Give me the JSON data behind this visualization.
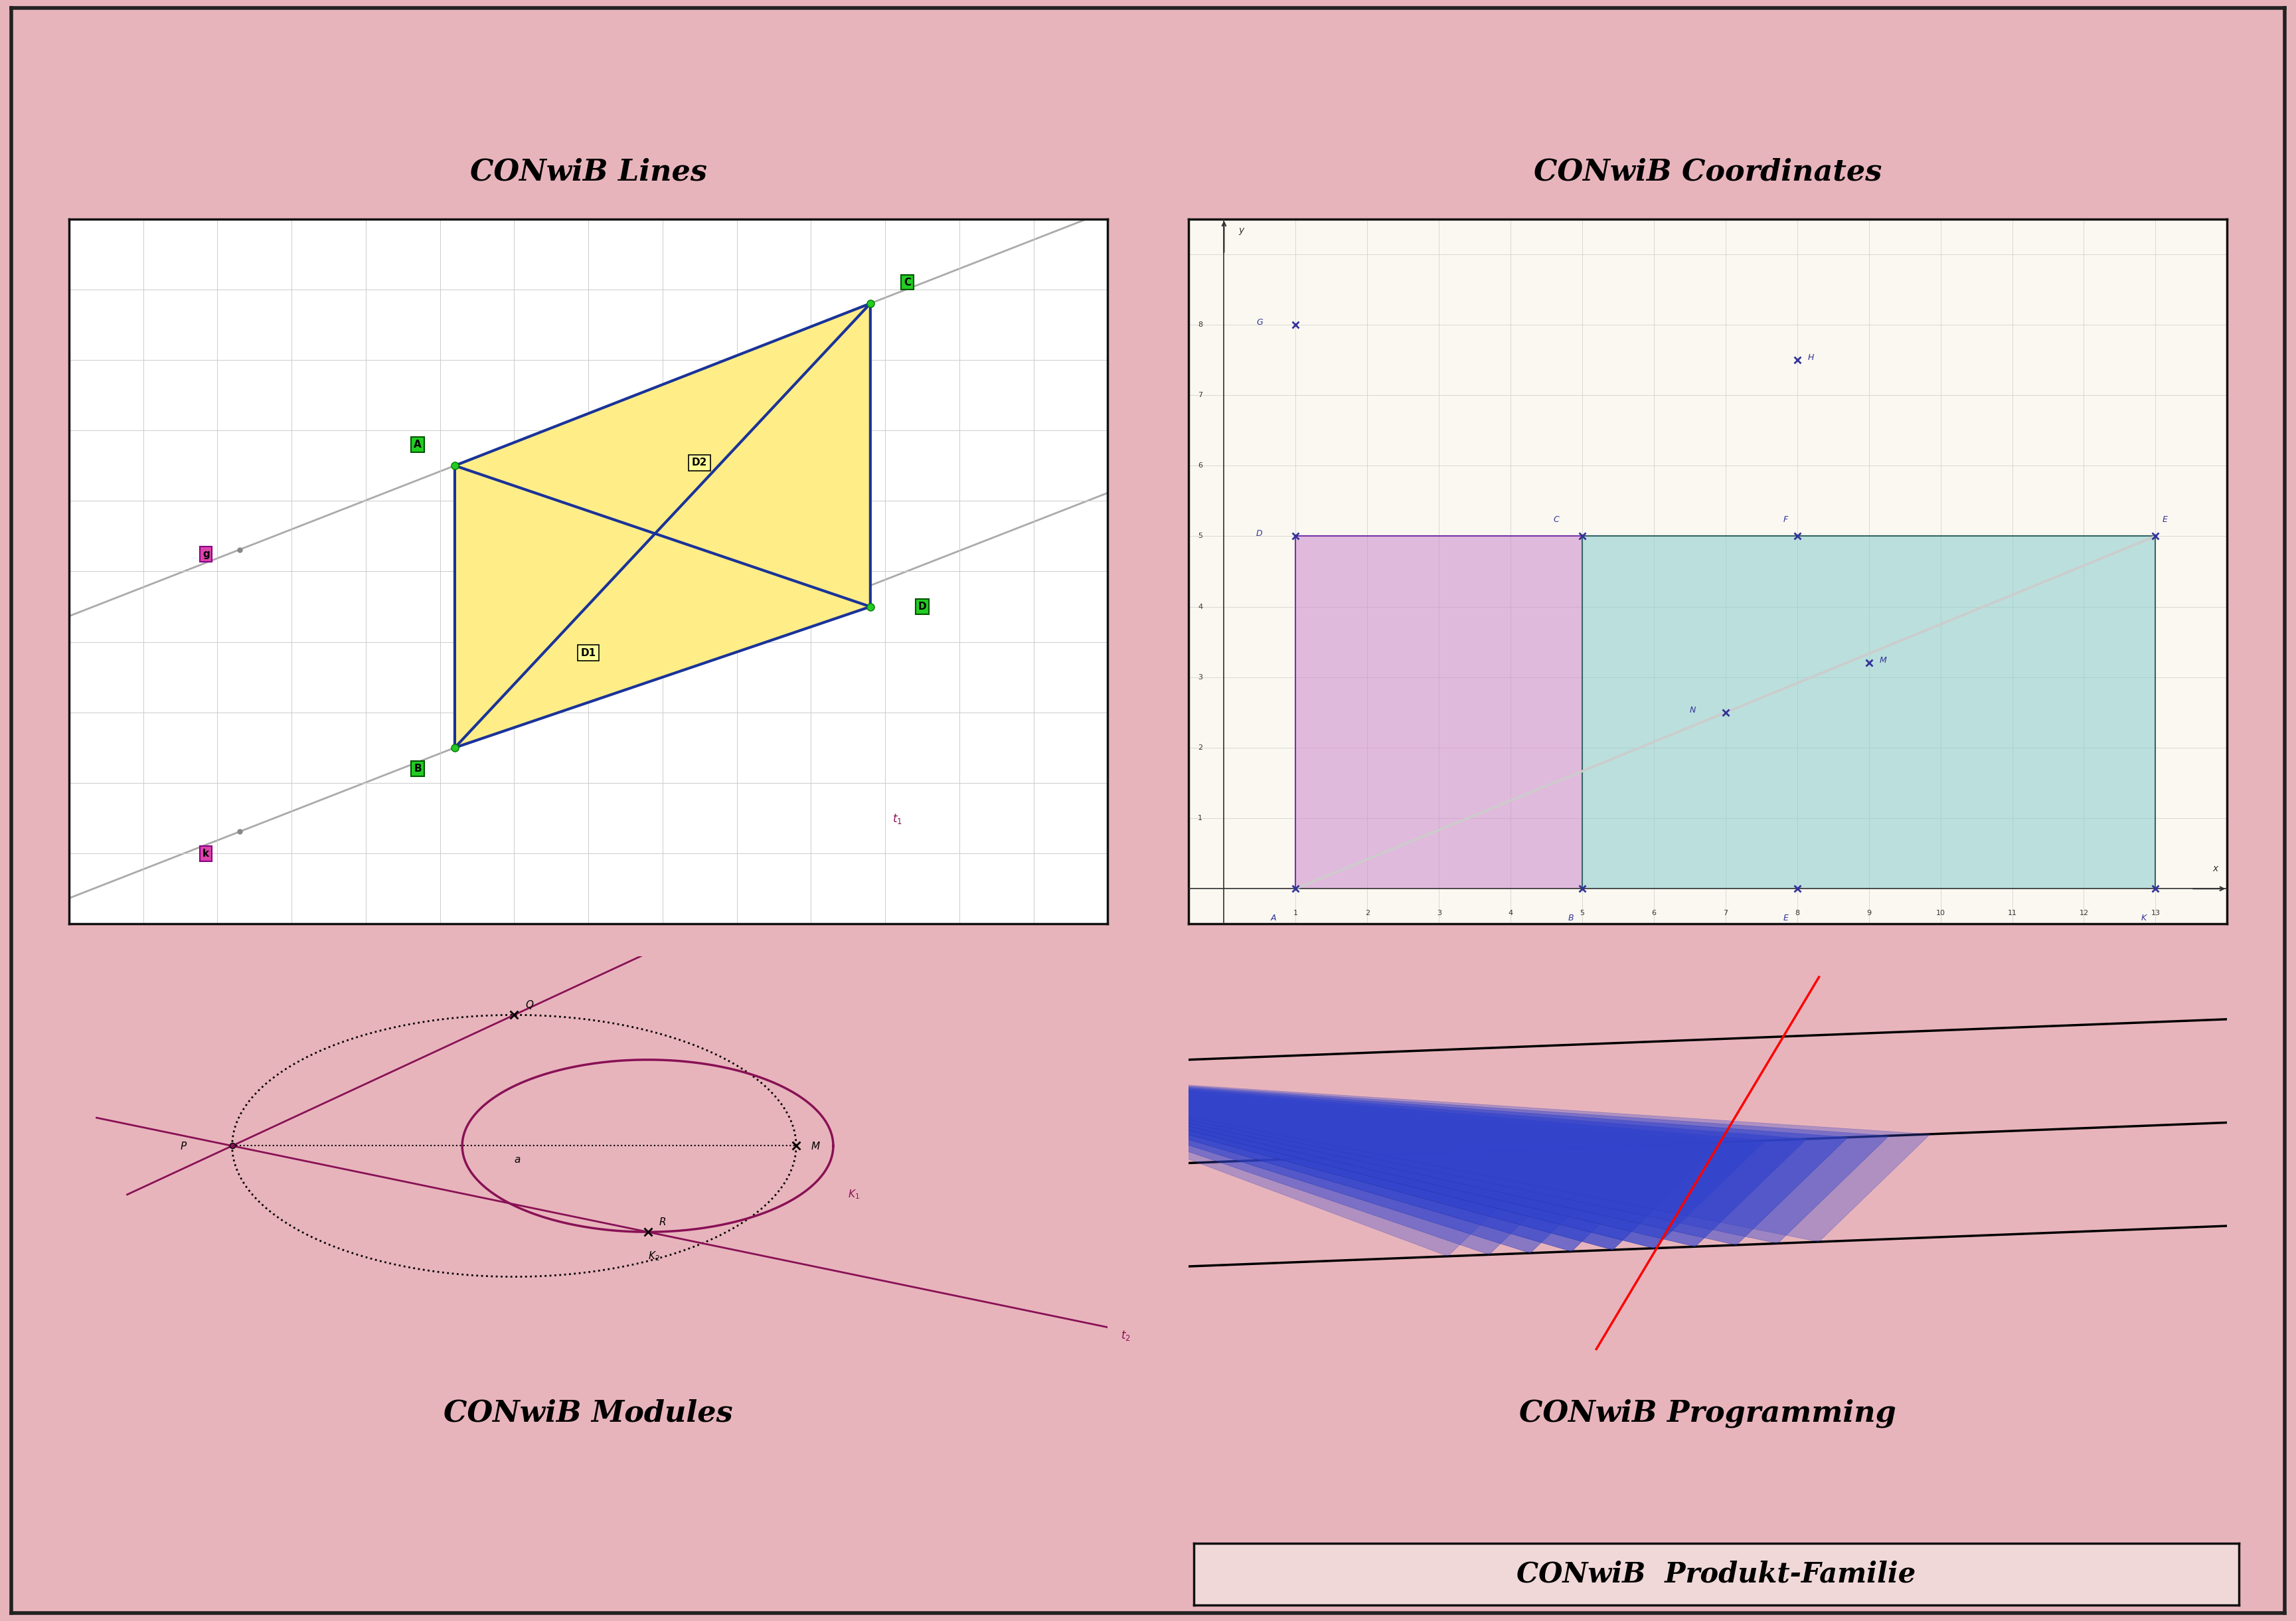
{
  "bg_color": "#e8b4bc",
  "panel_bg_lines": "#ffffff",
  "panel_bg_coords": "#faf8f0",
  "panel_bg_modules": "#fdf8e8",
  "panel_bg_programming": "#fdf8e8",
  "title_lines": "CONwiB Lines",
  "title_coords": "CONwiB Coordinates",
  "title_modules": "CONwiB Modules",
  "title_programming": "CONwiB Programming",
  "bottom_label": "CONwiB  Produkt-Familie",
  "yellow_fill": "#ffee88",
  "parallelogram_stroke": "#1a3399",
  "point_green": "#22cc22",
  "label_green_bg": "#22cc22",
  "label_magenta_bg": "#dd44aa",
  "coord_purple_fill": "#cc88cc",
  "coord_teal_fill": "#88cccc",
  "prog_blue_fill": "#3344cc",
  "module_purple": "#881155"
}
